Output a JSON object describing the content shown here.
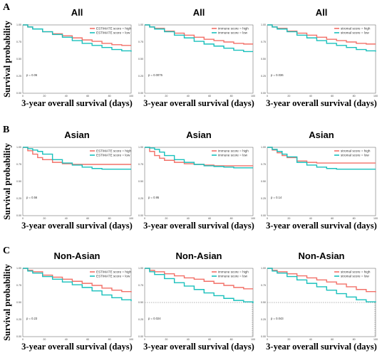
{
  "colors": {
    "high": "#f27068",
    "low": "#19c0bc",
    "frame": "#000000"
  },
  "chart_data": [
    {
      "type": "line",
      "row": "A",
      "col": 0,
      "title": "All",
      "xlabel": "3-year overall survival (days)",
      "ylabel": "Survival probability",
      "ylim": [
        0,
        1
      ],
      "xlim": [
        0,
        1095
      ],
      "xticks": [
        "0",
        "20",
        "40",
        "60",
        "80",
        "100"
      ],
      "yticks": [
        "0.00",
        "0.25",
        "0.50",
        "0.75",
        "1.00"
      ],
      "pvalue": "p = 0.06",
      "series": [
        {
          "name": "ESTIMATE score = high",
          "key": "high",
          "x": [
            0,
            50,
            100,
            200,
            300,
            400,
            500,
            600,
            700,
            800,
            900,
            1000,
            1095
          ],
          "y": [
            1.0,
            0.97,
            0.94,
            0.9,
            0.87,
            0.84,
            0.81,
            0.78,
            0.76,
            0.73,
            0.71,
            0.7,
            0.7
          ]
        },
        {
          "name": "ESTIMATE score = low",
          "key": "low",
          "x": [
            0,
            50,
            100,
            200,
            300,
            400,
            500,
            600,
            700,
            800,
            900,
            1000,
            1095
          ],
          "y": [
            1.0,
            0.97,
            0.94,
            0.9,
            0.86,
            0.82,
            0.77,
            0.73,
            0.7,
            0.67,
            0.64,
            0.62,
            0.61
          ]
        }
      ]
    },
    {
      "type": "line",
      "row": "A",
      "col": 1,
      "title": "All",
      "xlabel": "3-year overall survival (days)",
      "ylabel": "",
      "ylim": [
        0,
        1
      ],
      "xlim": [
        0,
        1095
      ],
      "xticks": [
        "0",
        "20",
        "40",
        "60",
        "80",
        "100"
      ],
      "yticks": [
        "0.00",
        "0.25",
        "0.50",
        "0.75",
        "1.00"
      ],
      "pvalue": "p = 0.0075",
      "series": [
        {
          "name": "immune score = high",
          "key": "high",
          "x": [
            0,
            50,
            100,
            200,
            300,
            400,
            500,
            600,
            700,
            800,
            900,
            1000,
            1095
          ],
          "y": [
            1.0,
            0.97,
            0.95,
            0.91,
            0.88,
            0.85,
            0.82,
            0.79,
            0.77,
            0.75,
            0.73,
            0.72,
            0.72
          ]
        },
        {
          "name": "immune score = low",
          "key": "low",
          "x": [
            0,
            50,
            100,
            200,
            300,
            400,
            500,
            600,
            700,
            800,
            900,
            1000,
            1095
          ],
          "y": [
            1.0,
            0.97,
            0.94,
            0.9,
            0.85,
            0.81,
            0.76,
            0.72,
            0.69,
            0.66,
            0.63,
            0.61,
            0.61
          ]
        }
      ]
    },
    {
      "type": "line",
      "row": "A",
      "col": 2,
      "title": "All",
      "xlabel": "3-year overall survival (days)",
      "ylabel": "",
      "ylim": [
        0,
        1
      ],
      "xlim": [
        0,
        1095
      ],
      "xticks": [
        "0",
        "20",
        "40",
        "60",
        "80",
        "100"
      ],
      "yticks": [
        "0.00",
        "0.25",
        "0.50",
        "0.75",
        "1.00"
      ],
      "pvalue": "p = 0.036",
      "series": [
        {
          "name": "stromal score = high",
          "key": "high",
          "x": [
            0,
            50,
            100,
            200,
            300,
            400,
            500,
            600,
            700,
            800,
            900,
            1000,
            1095
          ],
          "y": [
            1.0,
            0.97,
            0.95,
            0.91,
            0.88,
            0.85,
            0.82,
            0.79,
            0.77,
            0.75,
            0.73,
            0.72,
            0.72
          ]
        },
        {
          "name": "stromal score = low",
          "key": "low",
          "x": [
            0,
            50,
            100,
            200,
            300,
            400,
            500,
            600,
            700,
            800,
            900,
            1000,
            1095
          ],
          "y": [
            1.0,
            0.97,
            0.94,
            0.9,
            0.85,
            0.81,
            0.77,
            0.73,
            0.7,
            0.67,
            0.64,
            0.62,
            0.61
          ]
        }
      ]
    },
    {
      "type": "line",
      "row": "B",
      "col": 0,
      "title": "Asian",
      "xlabel": "3-year overall survival (days)",
      "ylabel": "Survival probability",
      "ylim": [
        0,
        1
      ],
      "xlim": [
        0,
        1095
      ],
      "xticks": [
        "0",
        "20",
        "40",
        "60",
        "80",
        "100"
      ],
      "yticks": [
        "0.00",
        "0.25",
        "0.50",
        "0.75",
        "1.00"
      ],
      "pvalue": "p = 0.56",
      "series": [
        {
          "name": "ESTIMATE score = high",
          "key": "high",
          "x": [
            0,
            50,
            100,
            150,
            200,
            300,
            400,
            500,
            600,
            700,
            800,
            900,
            1000,
            1095
          ],
          "y": [
            1.0,
            0.95,
            0.9,
            0.85,
            0.82,
            0.78,
            0.76,
            0.75,
            0.75,
            0.75,
            0.75,
            0.75,
            0.75,
            0.75
          ]
        },
        {
          "name": "ESTIMATE score = low",
          "key": "low",
          "x": [
            0,
            50,
            100,
            150,
            200,
            300,
            400,
            500,
            600,
            700,
            800,
            900,
            1000,
            1095
          ],
          "y": [
            1.0,
            0.98,
            0.96,
            0.94,
            0.9,
            0.82,
            0.77,
            0.74,
            0.71,
            0.69,
            0.68,
            0.68,
            0.68,
            0.68
          ]
        }
      ]
    },
    {
      "type": "line",
      "row": "B",
      "col": 1,
      "title": "Asian",
      "xlabel": "3-year overall survival (days)",
      "ylabel": "",
      "ylim": [
        0,
        1
      ],
      "xlim": [
        0,
        1095
      ],
      "xticks": [
        "0",
        "20",
        "40",
        "60",
        "80",
        "100"
      ],
      "yticks": [
        "0.00",
        "0.25",
        "0.50",
        "0.75",
        "1.00"
      ],
      "pvalue": "p = 0.95",
      "series": [
        {
          "name": "immune score = high",
          "key": "high",
          "x": [
            0,
            50,
            100,
            150,
            200,
            300,
            400,
            500,
            600,
            700,
            800,
            900,
            1000,
            1095
          ],
          "y": [
            1.0,
            0.94,
            0.88,
            0.84,
            0.81,
            0.78,
            0.76,
            0.75,
            0.74,
            0.73,
            0.73,
            0.73,
            0.73,
            0.73
          ]
        },
        {
          "name": "immune score = low",
          "key": "low",
          "x": [
            0,
            50,
            100,
            150,
            200,
            300,
            400,
            500,
            600,
            700,
            800,
            900,
            1000,
            1095
          ],
          "y": [
            1.0,
            0.99,
            0.97,
            0.93,
            0.88,
            0.82,
            0.78,
            0.75,
            0.73,
            0.72,
            0.71,
            0.7,
            0.7,
            0.7
          ]
        }
      ]
    },
    {
      "type": "line",
      "row": "B",
      "col": 2,
      "title": "Asian",
      "xlabel": "3-year overall survival (days)",
      "ylabel": "",
      "ylim": [
        0,
        1
      ],
      "xlim": [
        0,
        1095
      ],
      "xticks": [
        "0",
        "20",
        "40",
        "60",
        "80",
        "100"
      ],
      "yticks": [
        "0.00",
        "0.25",
        "0.50",
        "0.75",
        "1.00"
      ],
      "pvalue": "p = 0.14",
      "series": [
        {
          "name": "stromal score = high",
          "key": "high",
          "x": [
            0,
            50,
            100,
            150,
            200,
            300,
            400,
            500,
            600,
            700,
            800,
            900,
            1000,
            1095
          ],
          "y": [
            1.0,
            0.96,
            0.92,
            0.88,
            0.85,
            0.8,
            0.78,
            0.77,
            0.77,
            0.77,
            0.77,
            0.77,
            0.77,
            0.77
          ]
        },
        {
          "name": "stromal score = low",
          "key": "low",
          "x": [
            0,
            50,
            100,
            150,
            200,
            300,
            400,
            500,
            600,
            700,
            800,
            900,
            1000,
            1095
          ],
          "y": [
            1.0,
            0.97,
            0.94,
            0.9,
            0.86,
            0.78,
            0.74,
            0.71,
            0.69,
            0.68,
            0.68,
            0.68,
            0.68,
            0.68
          ]
        }
      ]
    },
    {
      "type": "line",
      "row": "C",
      "col": 0,
      "title": "Non-Asian",
      "xlabel": "3-year overall survival (days)",
      "ylabel": "Survival probability",
      "ylim": [
        0,
        1
      ],
      "xlim": [
        0,
        1095
      ],
      "xticks": [
        "0",
        "20",
        "40",
        "60",
        "80",
        "100"
      ],
      "yticks": [
        "0.00",
        "0.25",
        "0.50",
        "0.75",
        "1.00"
      ],
      "pvalue": "p = 0.23",
      "series": [
        {
          "name": "ESTIMATE score = high",
          "key": "high",
          "x": [
            0,
            50,
            100,
            200,
            300,
            400,
            500,
            600,
            700,
            800,
            900,
            1000,
            1095
          ],
          "y": [
            1.0,
            0.97,
            0.95,
            0.9,
            0.87,
            0.84,
            0.81,
            0.78,
            0.75,
            0.71,
            0.68,
            0.66,
            0.65
          ]
        },
        {
          "name": "ESTIMATE score = low",
          "key": "low",
          "x": [
            0,
            50,
            100,
            200,
            300,
            400,
            500,
            600,
            700,
            800,
            900,
            1000,
            1095
          ],
          "y": [
            1.0,
            0.96,
            0.93,
            0.88,
            0.84,
            0.8,
            0.76,
            0.72,
            0.67,
            0.61,
            0.57,
            0.54,
            0.52
          ]
        }
      ]
    },
    {
      "type": "line",
      "row": "C",
      "col": 1,
      "title": "Non-Asian",
      "xlabel": "3-year overall survival (days)",
      "ylabel": "",
      "ylim": [
        0,
        1
      ],
      "xlim": [
        0,
        1095
      ],
      "xticks": [
        "0",
        "20",
        "40",
        "60",
        "80",
        "100"
      ],
      "yticks": [
        "0.00",
        "0.25",
        "0.50",
        "0.75",
        "1.00"
      ],
      "pvalue": "p = 0.024",
      "median_line": true,
      "series": [
        {
          "name": "immune score = high",
          "key": "high",
          "x": [
            0,
            50,
            100,
            200,
            300,
            400,
            500,
            600,
            700,
            800,
            900,
            1000,
            1095
          ],
          "y": [
            1.0,
            0.97,
            0.95,
            0.92,
            0.89,
            0.86,
            0.84,
            0.81,
            0.78,
            0.75,
            0.72,
            0.7,
            0.7
          ]
        },
        {
          "name": "immune score = low",
          "key": "low",
          "x": [
            0,
            50,
            100,
            200,
            300,
            400,
            500,
            600,
            700,
            800,
            900,
            1000,
            1095
          ],
          "y": [
            1.0,
            0.95,
            0.91,
            0.85,
            0.79,
            0.74,
            0.69,
            0.64,
            0.6,
            0.56,
            0.53,
            0.51,
            0.49
          ]
        }
      ]
    },
    {
      "type": "line",
      "row": "C",
      "col": 2,
      "title": "Non-Asian",
      "xlabel": "3-year overall survival (days)",
      "ylabel": "",
      "ylim": [
        0,
        1
      ],
      "xlim": [
        0,
        1095
      ],
      "xticks": [
        "0",
        "20",
        "40",
        "60",
        "80",
        "100"
      ],
      "yticks": [
        "0.00",
        "0.25",
        "0.50",
        "0.75",
        "1.00"
      ],
      "pvalue": "p = 0.043",
      "median_line": true,
      "series": [
        {
          "name": "stromal score = high",
          "key": "high",
          "x": [
            0,
            50,
            100,
            200,
            300,
            400,
            500,
            600,
            700,
            800,
            900,
            1000,
            1095
          ],
          "y": [
            1.0,
            0.97,
            0.95,
            0.92,
            0.89,
            0.86,
            0.83,
            0.8,
            0.77,
            0.73,
            0.69,
            0.66,
            0.65
          ]
        },
        {
          "name": "stromal score = low",
          "key": "low",
          "x": [
            0,
            50,
            100,
            200,
            300,
            400,
            500,
            600,
            700,
            800,
            900,
            1000,
            1095
          ],
          "y": [
            1.0,
            0.96,
            0.93,
            0.88,
            0.83,
            0.78,
            0.73,
            0.68,
            0.63,
            0.58,
            0.54,
            0.51,
            0.5
          ]
        }
      ]
    }
  ],
  "rows": [
    {
      "letter": "A"
    },
    {
      "letter": "B"
    },
    {
      "letter": "C"
    }
  ]
}
